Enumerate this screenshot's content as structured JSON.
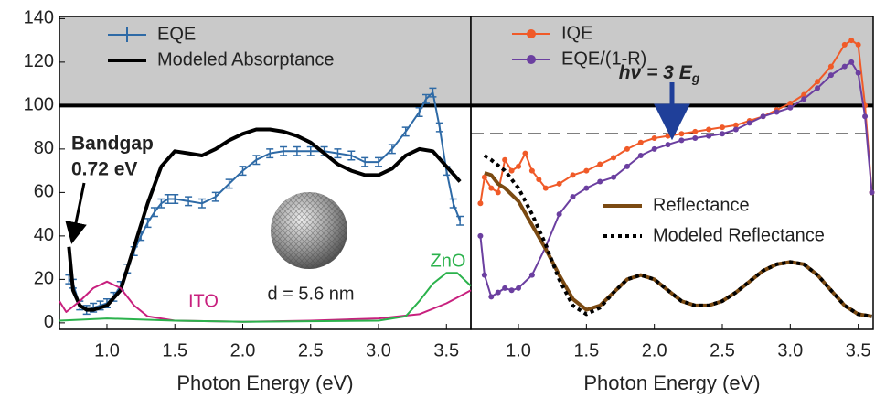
{
  "chart_data": [
    {
      "type": "line",
      "xlabel": "Photon Energy (eV)",
      "xlim": [
        0.65,
        3.68
      ],
      "ylim": [
        -3,
        141
      ],
      "xticks": [
        {
          "value": 1.0,
          "label": "1.0"
        },
        {
          "value": 1.5,
          "label": "1.5"
        },
        {
          "value": 2.0,
          "label": "2.0"
        },
        {
          "value": 2.5,
          "label": "2.5"
        },
        {
          "value": 3.0,
          "label": "3.0"
        },
        {
          "value": 3.5,
          "label": "3.5"
        }
      ],
      "yticks": [
        0,
        20,
        40,
        60,
        80,
        100,
        120,
        140
      ],
      "shade_above": 100,
      "hline": 100,
      "annotations": [
        "Bandgap",
        "0.72 eV",
        "d = 5.6 nm"
      ],
      "series": [
        {
          "name": "EQE",
          "color": "#2e6aa6",
          "style": "errorbar",
          "x": [
            0.72,
            0.75,
            0.8,
            0.85,
            0.9,
            0.95,
            1.0,
            1.05,
            1.1,
            1.15,
            1.2,
            1.25,
            1.3,
            1.35,
            1.4,
            1.45,
            1.5,
            1.6,
            1.7,
            1.8,
            1.9,
            2.0,
            2.1,
            2.2,
            2.3,
            2.4,
            2.5,
            2.6,
            2.7,
            2.8,
            2.9,
            3.0,
            3.1,
            3.2,
            3.3,
            3.35,
            3.4,
            3.45,
            3.5,
            3.55,
            3.6
          ],
          "values": [
            20,
            18,
            8,
            6,
            7,
            8,
            9,
            12,
            17,
            25,
            33,
            40,
            46,
            51,
            55,
            57,
            57,
            56,
            55,
            58,
            64,
            70,
            75,
            78,
            79,
            79,
            79,
            79,
            78,
            77,
            74,
            74,
            80,
            88,
            97,
            103,
            106,
            90,
            70,
            55,
            47
          ],
          "errors": [
            2,
            2,
            2,
            2,
            2,
            2,
            2,
            2,
            2,
            2,
            2,
            2,
            2,
            2,
            2,
            2,
            2,
            2,
            2,
            2,
            2,
            2,
            2,
            2,
            2,
            2,
            2,
            2,
            2,
            2,
            2,
            2,
            2,
            2,
            2,
            2,
            2,
            2,
            2,
            2,
            2
          ]
        },
        {
          "name": "Modeled Absorptance",
          "color": "#000000",
          "style": "thick",
          "x": [
            0.72,
            0.75,
            0.8,
            0.85,
            0.9,
            1.0,
            1.1,
            1.2,
            1.3,
            1.4,
            1.5,
            1.6,
            1.7,
            1.8,
            1.9,
            2.0,
            2.1,
            2.2,
            2.3,
            2.4,
            2.5,
            2.6,
            2.7,
            2.8,
            2.9,
            3.0,
            3.1,
            3.2,
            3.3,
            3.4,
            3.5,
            3.6
          ],
          "values": [
            35,
            15,
            8,
            6,
            6,
            8,
            15,
            35,
            55,
            72,
            79,
            78,
            77,
            80,
            84,
            87,
            89,
            89,
            88,
            86,
            83,
            78,
            73,
            70,
            68,
            68,
            71,
            77,
            80,
            79,
            72,
            65
          ]
        },
        {
          "name": "ITO",
          "color": "#c8207e",
          "style": "line",
          "x": [
            0.65,
            0.7,
            0.8,
            0.9,
            1.0,
            1.1,
            1.2,
            1.3,
            1.5,
            2.0,
            2.5,
            3.0,
            3.3,
            3.5,
            3.68
          ],
          "values": [
            10,
            5,
            10,
            16,
            19,
            16,
            8,
            3,
            1,
            0.5,
            1,
            2,
            4,
            9,
            15
          ]
        },
        {
          "name": "ZnO",
          "color": "#2bb24c",
          "style": "line",
          "x": [
            0.65,
            1.0,
            1.5,
            2.0,
            3.0,
            3.2,
            3.3,
            3.4,
            3.5,
            3.58,
            3.68
          ],
          "values": [
            1,
            2,
            1,
            0.5,
            1,
            3,
            10,
            18,
            23,
            23,
            17
          ]
        }
      ]
    },
    {
      "type": "line",
      "xlabel": "Photon Energy (eV)",
      "xlim": [
        0.65,
        3.61
      ],
      "ylim": [
        -3,
        141
      ],
      "xticks": [
        {
          "value": 1.0,
          "label": "1.0"
        },
        {
          "value": 1.5,
          "label": "1.5"
        },
        {
          "value": 2.0,
          "label": "2.0"
        },
        {
          "value": 2.5,
          "label": "2.5"
        },
        {
          "value": 3.0,
          "label": "3.0"
        },
        {
          "value": 3.5,
          "label": "3.5"
        }
      ],
      "shade_above": 100,
      "hline": 100,
      "dashed_line": 87,
      "annotation": {
        "text": "hν = 3 E",
        "subscript": "g",
        "x": 2.13
      },
      "series": [
        {
          "name": "IQE",
          "color": "#f05a28",
          "style": "markers",
          "x": [
            0.72,
            0.75,
            0.8,
            0.85,
            0.9,
            0.95,
            1.0,
            1.05,
            1.1,
            1.15,
            1.2,
            1.3,
            1.4,
            1.5,
            1.6,
            1.7,
            1.8,
            1.9,
            2.0,
            2.1,
            2.2,
            2.3,
            2.4,
            2.5,
            2.6,
            2.7,
            2.8,
            2.9,
            3.0,
            3.1,
            3.2,
            3.3,
            3.4,
            3.45,
            3.5,
            3.55,
            3.6
          ],
          "values": [
            55,
            67,
            62,
            60,
            75,
            70,
            72,
            78,
            70,
            66,
            62,
            64,
            68,
            70,
            73,
            76,
            80,
            83,
            85,
            86,
            87,
            88,
            89,
            90,
            91,
            93,
            95,
            98,
            101,
            105,
            111,
            118,
            128,
            130,
            128,
            100,
            60
          ]
        },
        {
          "name": "EQE/(1-R)",
          "color": "#6b3fa0",
          "style": "markers",
          "x": [
            0.72,
            0.75,
            0.8,
            0.85,
            0.9,
            0.95,
            1.0,
            1.1,
            1.2,
            1.3,
            1.4,
            1.5,
            1.6,
            1.7,
            1.8,
            1.9,
            2.0,
            2.1,
            2.2,
            2.3,
            2.4,
            2.5,
            2.6,
            2.7,
            2.8,
            2.9,
            3.0,
            3.1,
            3.2,
            3.3,
            3.4,
            3.45,
            3.5,
            3.55,
            3.6
          ],
          "values": [
            40,
            22,
            12,
            14,
            16,
            15,
            16,
            22,
            35,
            50,
            58,
            62,
            65,
            67,
            72,
            77,
            80,
            82,
            84,
            85,
            86,
            87,
            89,
            92,
            95,
            97,
            99,
            103,
            108,
            114,
            118,
            120,
            115,
            95,
            60
          ]
        },
        {
          "name": "Reflectance",
          "color": "#7b4a12",
          "style": "thick",
          "x": [
            0.75,
            0.8,
            0.85,
            0.9,
            1.0,
            1.1,
            1.2,
            1.3,
            1.4,
            1.5,
            1.6,
            1.7,
            1.8,
            1.9,
            2.0,
            2.1,
            2.2,
            2.3,
            2.4,
            2.5,
            2.6,
            2.7,
            2.8,
            2.9,
            3.0,
            3.1,
            3.2,
            3.3,
            3.4,
            3.5,
            3.6
          ],
          "values": [
            69,
            68,
            64,
            62,
            56,
            45,
            34,
            22,
            11,
            6,
            8,
            14,
            20,
            22,
            20,
            15,
            10,
            8,
            8,
            10,
            14,
            19,
            24,
            27,
            28,
            27,
            22,
            15,
            8,
            4,
            3
          ]
        },
        {
          "name": "Modeled Reflectance",
          "color": "#000000",
          "style": "dotted",
          "x": [
            0.75,
            0.8,
            0.9,
            1.0,
            1.1,
            1.2,
            1.3,
            1.4,
            1.5,
            1.6,
            1.7,
            1.8,
            1.9,
            2.0,
            2.1,
            2.2,
            2.3,
            2.4,
            2.5,
            2.6,
            2.7,
            2.8,
            2.9,
            3.0,
            3.1,
            3.2,
            3.3,
            3.4,
            3.5,
            3.6
          ],
          "values": [
            77,
            75,
            70,
            62,
            50,
            36,
            20,
            8,
            4,
            7,
            14,
            20,
            22,
            20,
            15,
            10,
            8,
            8,
            10,
            14,
            19,
            24,
            27,
            28,
            27,
            22,
            15,
            8,
            4,
            3
          ]
        }
      ]
    }
  ]
}
